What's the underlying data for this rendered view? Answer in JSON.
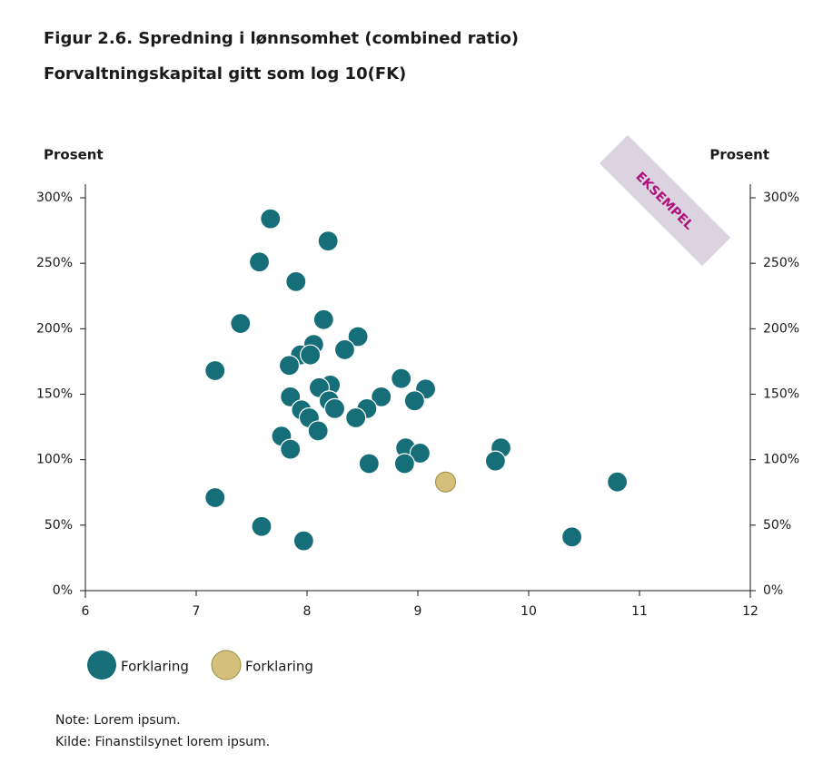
{
  "chart_data": {
    "type": "scatter",
    "title": "Figur 2.6. Spredning i lønnsomhet (combined ratio)",
    "subtitle": "Forvaltningskapital gitt som log 10(FK)",
    "y_label": "Prosent",
    "watermark": "EKSEMPEL",
    "xlim": [
      6,
      12
    ],
    "xticks": [
      6,
      7,
      8,
      9,
      10,
      11,
      12
    ],
    "ylim": [
      0,
      300
    ],
    "yticks": [
      {
        "value": 0,
        "label": "0%"
      },
      {
        "value": 50,
        "label": "50%"
      },
      {
        "value": 100,
        "label": "100%"
      },
      {
        "value": 150,
        "label": "150%"
      },
      {
        "value": 200,
        "label": "200%"
      },
      {
        "value": 250,
        "label": "250%"
      },
      {
        "value": 300,
        "label": "300%"
      }
    ],
    "series": [
      {
        "name": "Forklaring",
        "color": "#166e78",
        "x": [
          7.67,
          8.19,
          7.57,
          7.9,
          7.4,
          8.15,
          7.17,
          8.46,
          8.06,
          8.34,
          7.94,
          8.03,
          7.84,
          8.85,
          9.07,
          8.21,
          8.11,
          7.85,
          8.2,
          8.67,
          8.97,
          8.25,
          8.54,
          7.95,
          8.02,
          8.44,
          8.1,
          7.77,
          7.85,
          8.89,
          9.02,
          9.75,
          8.56,
          8.88,
          9.7,
          10.8,
          7.17,
          7.59,
          7.97,
          10.39
        ],
        "values": [
          284,
          267,
          251,
          236,
          204,
          207,
          168,
          194,
          188,
          184,
          180,
          180,
          172,
          162,
          154,
          157,
          155,
          148,
          145,
          148,
          145,
          139,
          139,
          138,
          132,
          132,
          122,
          118,
          108,
          109,
          105,
          109,
          97,
          97,
          99,
          83,
          71,
          49,
          38,
          41
        ]
      },
      {
        "name": "Forklaring",
        "color": "#d4c07a",
        "x": [
          9.25
        ],
        "values": [
          83
        ]
      }
    ],
    "notes": [
      "Note: Lorem ipsum.",
      "Kilde: Finanstilsynet lorem ipsum."
    ]
  }
}
